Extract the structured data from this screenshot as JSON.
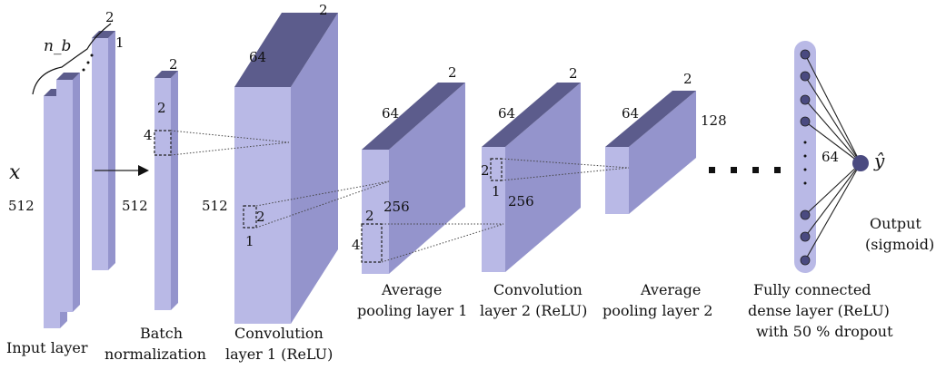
{
  "input": {
    "var": "x",
    "batch": "n_b",
    "depth_top": "2",
    "index_back": "1",
    "length": "512",
    "label": "Input layer"
  },
  "batchnorm": {
    "depth": "2",
    "length": "512",
    "kernel_w": "2",
    "kernel_h": "4",
    "label_line1": "Batch",
    "label_line2": "normalization"
  },
  "conv1": {
    "depth": "2",
    "channels": "64",
    "length": "512",
    "kernel_w": "2",
    "kernel_h": "1",
    "label_line1": "Convolution",
    "label_line2": "layer 1 (ReLU)"
  },
  "pool1": {
    "depth": "2",
    "channels": "64",
    "length": "256",
    "kernel_w": "2",
    "kernel_h": "4",
    "label_line1": "Average",
    "label_line2": "pooling layer 1"
  },
  "conv2": {
    "depth": "2",
    "channels": "64",
    "length": "256",
    "kernel_w": "2",
    "kernel_h": "1",
    "label_line1": "Convolution",
    "label_line2": "layer 2 (ReLU)"
  },
  "pool2": {
    "depth": "2",
    "channels": "64",
    "length": "128",
    "label_line1": "Average",
    "label_line2": "pooling layer 2"
  },
  "dense": {
    "units": "64",
    "label_line1": "Fully connected",
    "label_line2": "dense layer (ReLU)",
    "label_line3": "with 50 % dropout"
  },
  "output": {
    "symbol": "ŷ",
    "label_line1": "Output",
    "label_line2": "(sigmoid)"
  },
  "colors": {
    "front": "#b9b9e6",
    "side": "#9494cc",
    "top": "#5c5c8c",
    "neuron": "#4a4a80"
  }
}
